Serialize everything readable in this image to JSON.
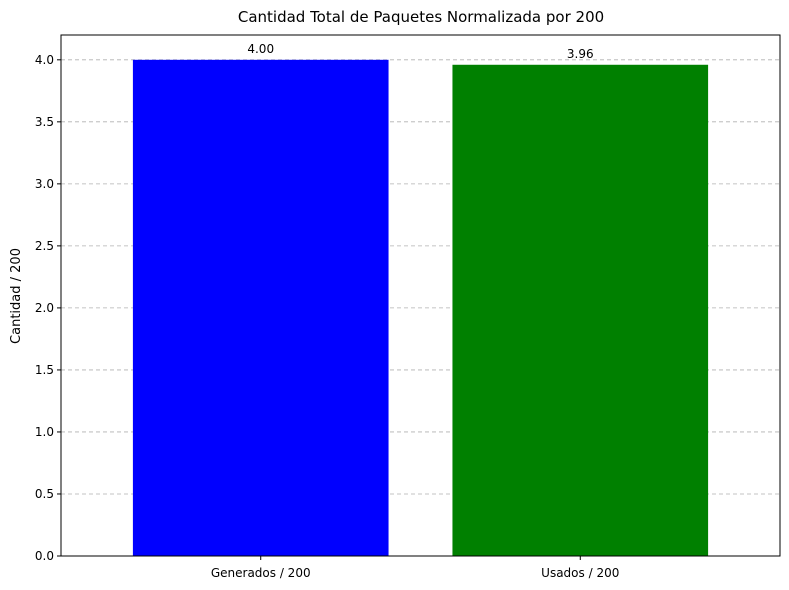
{
  "chart_data": {
    "type": "bar",
    "title": "Cantidad Total de Paquetes Normalizada por 200",
    "xlabel": "",
    "ylabel": "Cantidad / 200",
    "categories": [
      "Generados / 200",
      "Usados / 200"
    ],
    "values": [
      4.0,
      3.96
    ],
    "value_labels": [
      "4.00",
      "3.96"
    ],
    "colors": [
      "#0000ff",
      "#008000"
    ],
    "ylim": [
      0,
      4.2
    ],
    "yticks": [
      0.0,
      0.5,
      1.0,
      1.5,
      2.0,
      2.5,
      3.0,
      3.5,
      4.0
    ],
    "ytick_labels": [
      "0.0",
      "0.5",
      "1.0",
      "1.5",
      "2.0",
      "2.5",
      "3.0",
      "3.5",
      "4.0"
    ],
    "grid": "y-dashed",
    "grid_color": "#b0b0b0",
    "legend": "none"
  }
}
